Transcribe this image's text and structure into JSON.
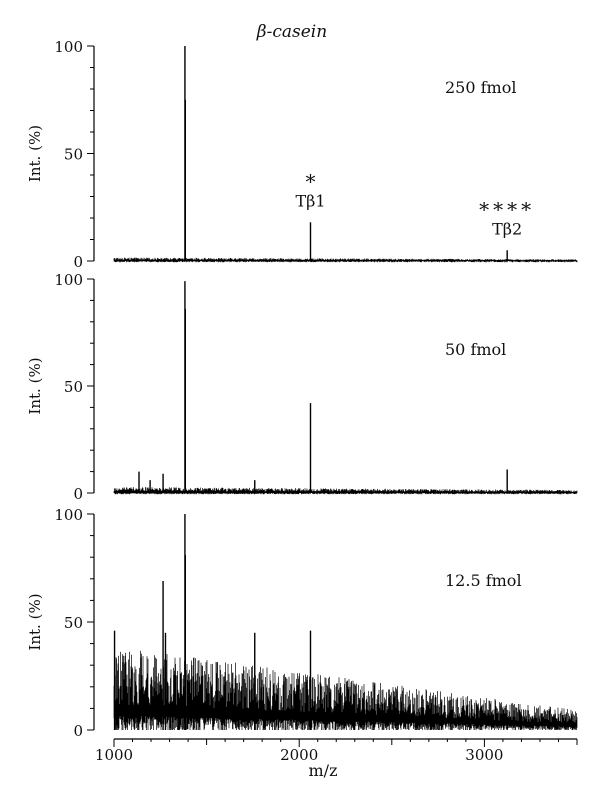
{
  "chart_data": {
    "type": "line",
    "title": "β-casein",
    "xlabel": "m/z",
    "ylabel": "Int. (%)",
    "xlim": [
      1000,
      3500
    ],
    "ylim": [
      0,
      100
    ],
    "x_ticks": [
      1000,
      2000,
      3000
    ],
    "y_ticks": [
      0,
      50,
      100
    ],
    "grid": false,
    "panels": [
      {
        "label": "250 fmol",
        "noise": {
          "start": 1.4,
          "end": 0.7
        },
        "peaks": [
          {
            "x": 1383,
            "y": 100
          },
          {
            "x": 1385,
            "y": 75
          },
          {
            "x": 2061,
            "y": 18
          },
          {
            "x": 3123,
            "y": 5
          }
        ],
        "annotations": [
          {
            "marker": "*",
            "text": "Tβ1",
            "x": 2061
          },
          {
            "marker": "****",
            "text": "Tβ2",
            "x": 3123
          }
        ]
      },
      {
        "label": "50 fmol",
        "noise": {
          "start": 2.5,
          "end": 1.2
        },
        "peaks": [
          {
            "x": 1135,
            "y": 10
          },
          {
            "x": 1195,
            "y": 6
          },
          {
            "x": 1265,
            "y": 9
          },
          {
            "x": 1383,
            "y": 99
          },
          {
            "x": 1385,
            "y": 86
          },
          {
            "x": 1760,
            "y": 6
          },
          {
            "x": 2061,
            "y": 42
          },
          {
            "x": 3123,
            "y": 11
          }
        ],
        "annotations": []
      },
      {
        "label": "12.5 fmol",
        "noise": {
          "start": 34,
          "end": 8
        },
        "peaks": [
          {
            "x": 1003,
            "y": 46
          },
          {
            "x": 1265,
            "y": 69
          },
          {
            "x": 1278,
            "y": 45
          },
          {
            "x": 1383,
            "y": 100
          },
          {
            "x": 1385,
            "y": 81
          },
          {
            "x": 1760,
            "y": 45
          },
          {
            "x": 2061,
            "y": 46
          }
        ],
        "annotations": []
      }
    ]
  }
}
